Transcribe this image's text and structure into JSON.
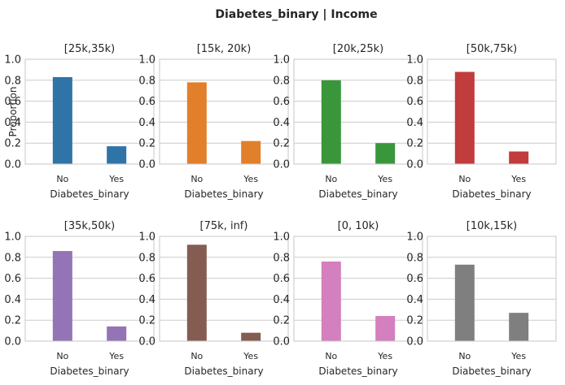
{
  "figure": {
    "suptitle": "Diabetes_binary | Income"
  },
  "chart_data": [
    {
      "type": "bar",
      "title": "[25k,35k)",
      "categories": [
        "No",
        "Yes"
      ],
      "values": [
        0.83,
        0.17
      ],
      "color": "#2f74a6",
      "xlabel": "Diabetes_binary",
      "ylabel": "Proportion",
      "ylim": [
        0,
        1
      ],
      "yticks": [
        "0.0",
        "0.2",
        "0.4",
        "0.6",
        "0.8",
        "1.0"
      ],
      "grid": true
    },
    {
      "type": "bar",
      "title": "[15k, 20k)",
      "categories": [
        "No",
        "Yes"
      ],
      "values": [
        0.78,
        0.22
      ],
      "color": "#e17f2b",
      "xlabel": "Diabetes_binary",
      "ylabel": "",
      "ylim": [
        0,
        1
      ],
      "yticks": [
        "0.0",
        "0.2",
        "0.4",
        "0.6",
        "0.8",
        "1.0"
      ],
      "grid": true
    },
    {
      "type": "bar",
      "title": "[20k,25k)",
      "categories": [
        "No",
        "Yes"
      ],
      "values": [
        0.8,
        0.2
      ],
      "color": "#3a963a",
      "xlabel": "Diabetes_binary",
      "ylabel": "",
      "ylim": [
        0,
        1
      ],
      "yticks": [
        "0.0",
        "0.2",
        "0.4",
        "0.6",
        "0.8",
        "1.0"
      ],
      "grid": true
    },
    {
      "type": "bar",
      "title": "[50k,75k)",
      "categories": [
        "No",
        "Yes"
      ],
      "values": [
        0.88,
        0.12
      ],
      "color": "#c13c3c",
      "xlabel": "Diabetes_binary",
      "ylabel": "",
      "ylim": [
        0,
        1
      ],
      "yticks": [
        "0.0",
        "0.2",
        "0.4",
        "0.6",
        "0.8",
        "1.0"
      ],
      "grid": true
    },
    {
      "type": "bar",
      "title": "[35k,50k)",
      "categories": [
        "No",
        "Yes"
      ],
      "values": [
        0.86,
        0.14
      ],
      "color": "#9474b4",
      "xlabel": "Diabetes_binary",
      "ylabel": "",
      "ylim": [
        0,
        1
      ],
      "yticks": [
        "0.0",
        "0.2",
        "0.4",
        "0.6",
        "0.8",
        "1.0"
      ],
      "grid": true
    },
    {
      "type": "bar",
      "title": "[75k, inf)",
      "categories": [
        "No",
        "Yes"
      ],
      "values": [
        0.92,
        0.08
      ],
      "color": "#845c51",
      "xlabel": "Diabetes_binary",
      "ylabel": "",
      "ylim": [
        0,
        1
      ],
      "yticks": [
        "0.0",
        "0.2",
        "0.4",
        "0.6",
        "0.8",
        "1.0"
      ],
      "grid": true
    },
    {
      "type": "bar",
      "title": "[0, 10k)",
      "categories": [
        "No",
        "Yes"
      ],
      "values": [
        0.76,
        0.24
      ],
      "color": "#d47fbe",
      "xlabel": "Diabetes_binary",
      "ylabel": "",
      "ylim": [
        0,
        1
      ],
      "yticks": [
        "0.0",
        "0.2",
        "0.4",
        "0.6",
        "0.8",
        "1.0"
      ],
      "grid": true
    },
    {
      "type": "bar",
      "title": "[10k,15k)",
      "categories": [
        "No",
        "Yes"
      ],
      "values": [
        0.73,
        0.27
      ],
      "color": "#7f7f7f",
      "xlabel": "Diabetes_binary",
      "ylabel": "",
      "ylim": [
        0,
        1
      ],
      "yticks": [
        "0.0",
        "0.2",
        "0.4",
        "0.6",
        "0.8",
        "1.0"
      ],
      "grid": true
    }
  ]
}
